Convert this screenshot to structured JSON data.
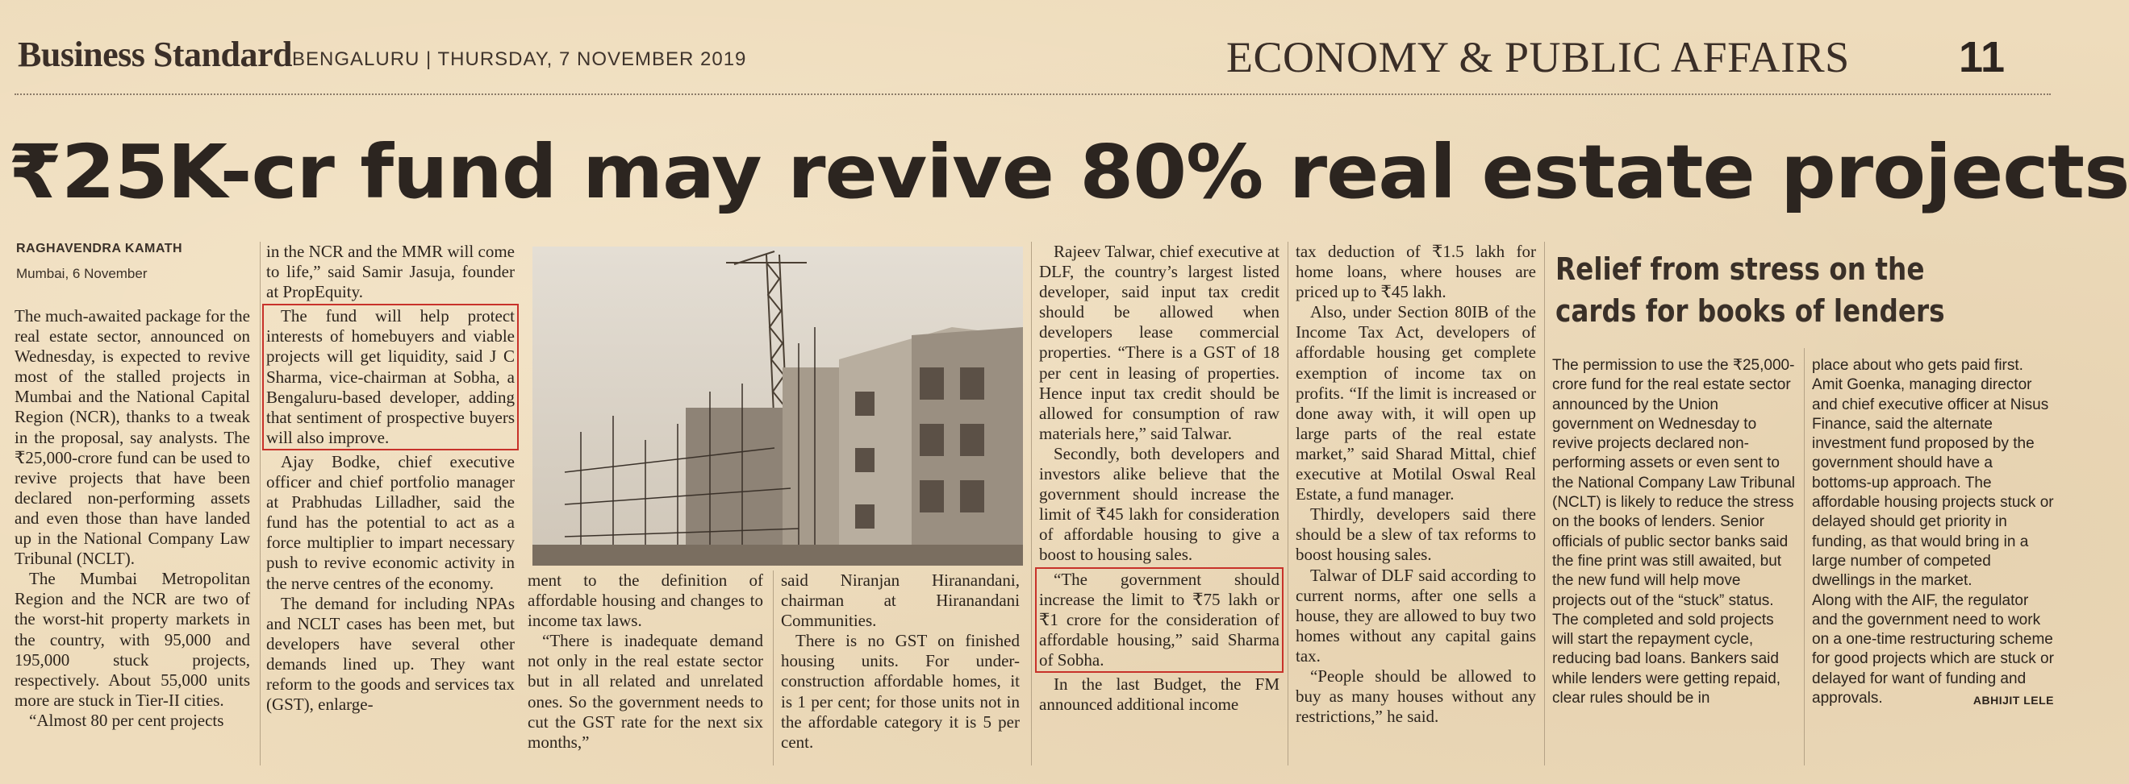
{
  "masthead": {
    "paper": "Business Standard",
    "dateline": "BENGALURU | THURSDAY, 7 NOVEMBER 2019",
    "section": "ECONOMY & PUBLIC AFFAIRS",
    "page_number": "11"
  },
  "article": {
    "headline": "₹25K-cr fund may revive 80% real estate projects",
    "byline": "RAGHAVENDRA KAMATH",
    "dateline": "Mumbai, 6 November",
    "col1": [
      "The much-awaited package for the real estate sector, announced on Wednesday, is expected to revive most of the stalled projects in Mumbai and the National Capital Region (NCR), thanks to a tweak in the proposal, say analysts. The ₹25,000-crore fund can be used to revive projects that have been declared non-performing assets and even those than have landed up in the National Company Law Tribunal (NCLT).",
      "The Mumbai Metropolitan Region and the NCR are two of the worst-hit property markets in the country, with 95,000 and 195,000 stuck projects, respectively. About 55,000 units more are stuck in Tier-II cities.",
      "“Almost 80 per cent projects"
    ],
    "col2": [
      "in the NCR and the MMR will come to life,” said Samir Jasuja, founder at PropEquity.",
      "The fund will help protect interests of homebuyers and viable projects will get liquidity, said J C Sharma, vice-chairman at Sobha, a Bengaluru-based developer, adding that sentiment of prospective buyers will also improve.",
      "Ajay Bodke, chief executive officer and chief portfolio manager at Prabhudas Lilladher, said the fund has the potential to act as a force multiplier to impart necessary push to revive economic activity in the nerve centres of the economy.",
      "The demand for including NPAs and NCLT cases has been met, but developers have several other demands lined up. They want reform to the goods and services tax (GST), enlarge-"
    ],
    "col3": [
      "ment to the definition of affordable housing and changes to income tax laws.",
      "“There is inadequate demand not only in the real estate sector but in all related and unrelated ones. So the government needs to cut the GST rate for the next six months,”"
    ],
    "col4": [
      "said Niranjan Hiranandani, chairman at Hiranandani Communities.",
      "There is no GST on finished housing units. For under-construction affordable homes, it is 1 per cent; for those units not in the affordable category it is 5 per cent."
    ],
    "col5": [
      "Rajeev Talwar, chief executive at DLF, the country’s largest listed developer, said input tax credit should be allowed when developers lease commercial properties. “There is a GST of 18 per cent in leasing of properties. Hence input tax credit should be allowed for consumption of raw materials here,” said Talwar.",
      "Secondly, both developers and investors alike believe that the government should increase the limit of ₹45 lakh for consideration of affordable housing to give a boost to housing sales.",
      "“The government should increase the limit to ₹75 lakh or ₹1 crore for the consideration of affordable housing,” said Sharma of Sobha.",
      "In the last Budget, the FM announced additional income"
    ],
    "col6": [
      "tax deduction of ₹1.5 lakh for home loans, where houses are priced up to ₹45 lakh.",
      "Also, under Section 80IB of the Income Tax Act, developers of affordable housing get complete exemption of income tax on profits. “If the limit is increased or done away with, it will open up large parts of the real estate market,” said Sharad Mittal, chief executive at Motilal Oswal Real Estate, a fund manager.",
      "Thirdly, developers said there should be a slew of tax reforms to boost housing sales.",
      "Talwar of DLF said according to current norms, after one sells a house, they are allowed to buy two homes without any capital gains tax.",
      "“People should be allowed to buy as many houses without any restrictions,” he said."
    ]
  },
  "sidebar": {
    "headline": "Relief from stress on the cards for books of lenders",
    "col1": [
      "The permission to use the ₹25,000-crore fund for the real estate sector announced by the Union government on Wednesday to revive projects declared non-performing assets or even sent to the National Company Law Tribunal (NCLT) is likely to reduce the stress on the books of lenders. Senior officials of public sector banks said the fine print was still awaited, but the new fund will help move projects out of the “stuck” status.",
      "The completed and sold projects will start the repayment cycle, reducing bad loans. Bankers said while lenders were getting repaid, clear rules should be in"
    ],
    "col2": [
      "place about who gets paid first. Amit Goenka, managing director and chief executive officer at Nisus Finance, said the alternate investment fund proposed by the government should have a bottoms-up approach. The affordable housing projects stuck or delayed should get priority in funding, as that would bring in a large number of competed dwellings in the market.",
      "Along with the AIF, the regulator and the government need to work on a one-time restructuring scheme for good projects which are stuck or delayed for want of funding and approvals."
    ],
    "credit": "ABHIJIT LELE"
  },
  "colors": {
    "paper": "#eedcbc",
    "ink": "#2c241d",
    "highlight_box": "#c8322a"
  }
}
